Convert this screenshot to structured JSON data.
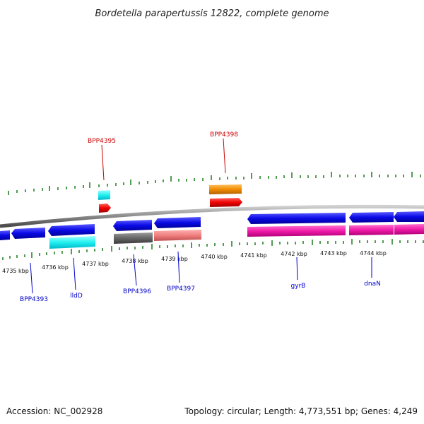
{
  "title": "Bordetella parapertussis 12822, complete genome",
  "footer": {
    "accession": "Accession: NC_002928",
    "summary": "Topology: circular; Length: 4,773,551 bp; Genes: 4,249"
  },
  "colors": {
    "backbone": "#8a8a8a",
    "tick": "#1a7a1a",
    "label_blue": "#0000cc",
    "label_red": "#cc0000",
    "gene_blue": "#0a0ae6",
    "gene_cyan": "#20f0f0",
    "gene_red": "#ee0000",
    "gene_orange": "#f08c00",
    "gene_gray": "#666666",
    "gene_salmon": "#f08080",
    "gene_magenta": "#f01aa8"
  },
  "scale": {
    "kbp_labels": [
      "4735 kbp",
      "4736 kbp",
      "4737 kbp",
      "4738 kbp",
      "4739 kbp",
      "4740 kbp",
      "4741 kbp",
      "4742 kbp",
      "4743 kbp",
      "4744 kbp"
    ]
  },
  "gene_labels": {
    "bpp4395": "BPP4395",
    "bpp4398": "BPP4398",
    "bpp4393": "BPP4393",
    "lldd": "lldD",
    "bpp4396": "BPP4396",
    "bpp4397": "BPP4397",
    "gyrb": "gyrB",
    "dnan": "dnaN"
  }
}
